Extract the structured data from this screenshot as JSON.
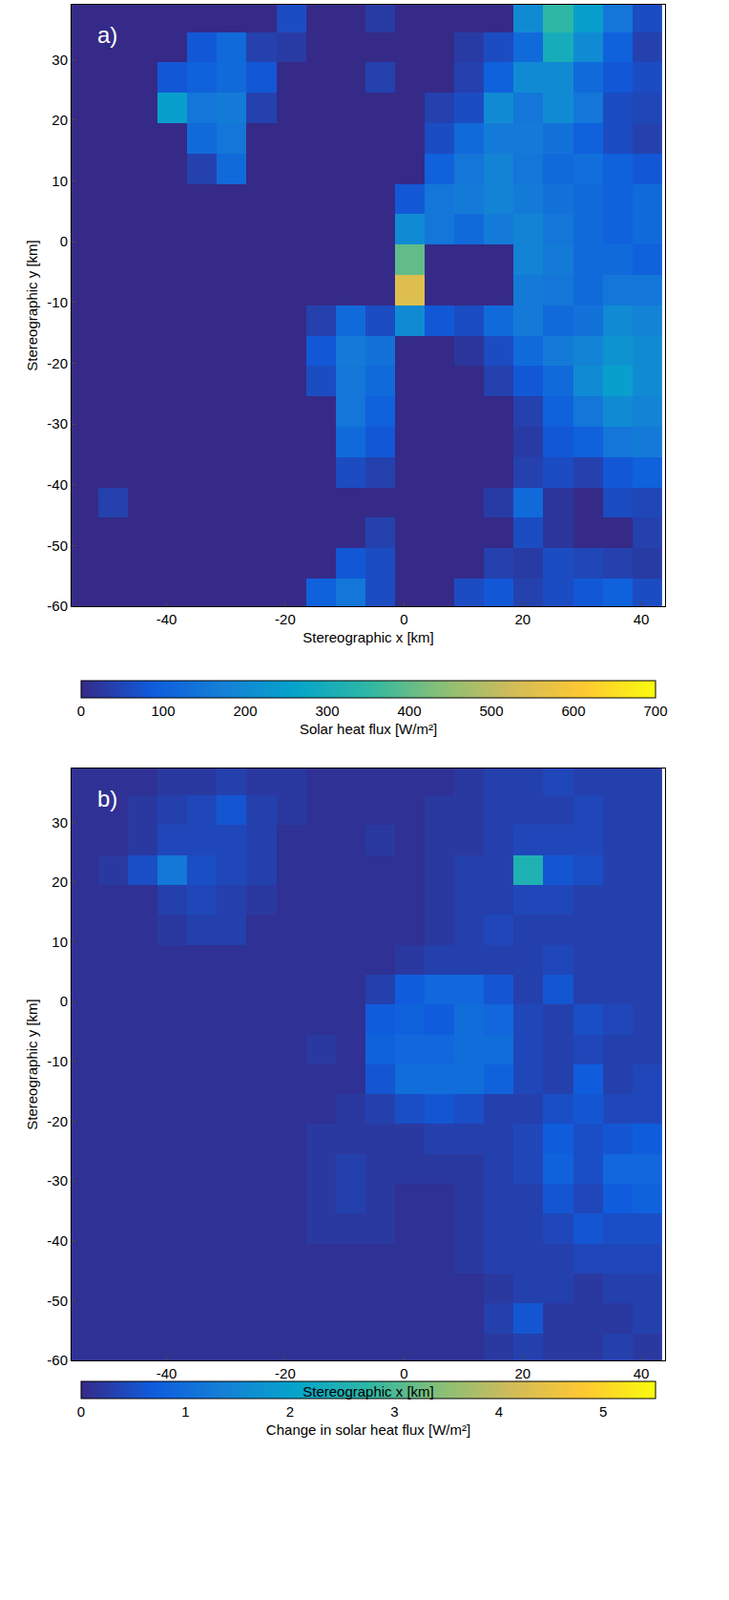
{
  "chart_data": [
    {
      "type": "heatmap",
      "title": "a)",
      "xlabel": "Stereographic x [km]",
      "ylabel": "Stereographic y [km]",
      "xlim": [
        -56,
        44
      ],
      "ylim": [
        -60,
        39
      ],
      "xticks": [
        -40,
        -20,
        0,
        20,
        40
      ],
      "yticks": [
        -60,
        -50,
        -40,
        -30,
        -20,
        -10,
        0,
        10,
        20,
        30
      ],
      "x": [
        -54,
        -49,
        -44,
        -39,
        -34,
        -29,
        -24,
        -19,
        -14,
        -9,
        -4,
        1,
        6,
        11,
        16,
        21,
        26,
        31,
        36,
        41
      ],
      "y": [
        -58,
        -53,
        -48,
        -43,
        -38,
        -33,
        -28,
        -23,
        -18,
        -13,
        -8,
        -3,
        2,
        7,
        12,
        17,
        22,
        27,
        32,
        37
      ],
      "z": [
        [
          0,
          0,
          0,
          0,
          0,
          0,
          0,
          0,
          100,
          150,
          60,
          0,
          0,
          60,
          80,
          40,
          60,
          80,
          100,
          60
        ],
        [
          0,
          0,
          0,
          0,
          0,
          0,
          0,
          0,
          0,
          80,
          60,
          0,
          0,
          0,
          40,
          30,
          60,
          50,
          40,
          30
        ],
        [
          0,
          0,
          0,
          0,
          0,
          0,
          0,
          0,
          0,
          0,
          40,
          0,
          0,
          0,
          0,
          60,
          20,
          0,
          0,
          40
        ],
        [
          0,
          40,
          0,
          0,
          0,
          0,
          0,
          0,
          0,
          0,
          0,
          0,
          0,
          0,
          30,
          120,
          20,
          0,
          60,
          50
        ],
        [
          0,
          0,
          0,
          0,
          0,
          0,
          0,
          0,
          0,
          60,
          40,
          0,
          0,
          0,
          0,
          40,
          60,
          40,
          80,
          100
        ],
        [
          0,
          0,
          0,
          0,
          0,
          0,
          0,
          0,
          0,
          120,
          80,
          0,
          0,
          0,
          0,
          30,
          80,
          100,
          150,
          160
        ],
        [
          0,
          0,
          0,
          0,
          0,
          0,
          0,
          0,
          0,
          150,
          100,
          0,
          0,
          0,
          0,
          40,
          100,
          150,
          200,
          180
        ],
        [
          0,
          0,
          0,
          0,
          0,
          0,
          0,
          0,
          60,
          150,
          120,
          0,
          0,
          0,
          40,
          80,
          120,
          200,
          250,
          200
        ],
        [
          0,
          0,
          0,
          0,
          0,
          0,
          0,
          0,
          80,
          160,
          140,
          0,
          0,
          20,
          60,
          120,
          160,
          180,
          220,
          200
        ],
        [
          0,
          0,
          0,
          0,
          0,
          0,
          0,
          0,
          40,
          120,
          60,
          200,
          80,
          60,
          120,
          160,
          120,
          140,
          200,
          180
        ],
        [
          0,
          0,
          0,
          0,
          0,
          0,
          0,
          0,
          0,
          0,
          0,
          550,
          0,
          0,
          0,
          160,
          150,
          120,
          150,
          150
        ],
        [
          0,
          0,
          0,
          0,
          0,
          0,
          0,
          0,
          0,
          0,
          0,
          400,
          0,
          0,
          0,
          180,
          160,
          120,
          120,
          100
        ],
        [
          0,
          0,
          0,
          0,
          0,
          0,
          0,
          0,
          0,
          0,
          0,
          200,
          150,
          120,
          160,
          180,
          150,
          120,
          100,
          120
        ],
        [
          0,
          0,
          0,
          0,
          0,
          0,
          0,
          0,
          0,
          0,
          0,
          80,
          150,
          160,
          180,
          160,
          140,
          120,
          100,
          120
        ],
        [
          0,
          0,
          0,
          0,
          40,
          120,
          0,
          0,
          0,
          0,
          0,
          0,
          100,
          150,
          180,
          150,
          120,
          130,
          100,
          80
        ],
        [
          0,
          0,
          0,
          0,
          120,
          150,
          0,
          0,
          0,
          0,
          0,
          0,
          60,
          120,
          160,
          160,
          140,
          100,
          60,
          40
        ],
        [
          0,
          0,
          0,
          250,
          150,
          160,
          40,
          0,
          0,
          0,
          0,
          0,
          40,
          60,
          200,
          150,
          200,
          150,
          60,
          50
        ],
        [
          0,
          0,
          0,
          80,
          100,
          120,
          80,
          0,
          0,
          0,
          40,
          0,
          0,
          40,
          100,
          200,
          200,
          120,
          80,
          60
        ],
        [
          0,
          0,
          0,
          0,
          80,
          120,
          40,
          30,
          0,
          0,
          0,
          0,
          0,
          30,
          60,
          120,
          300,
          200,
          100,
          40
        ],
        [
          0,
          0,
          0,
          0,
          0,
          0,
          0,
          60,
          0,
          0,
          30,
          0,
          0,
          0,
          0,
          200,
          350,
          250,
          150,
          60
        ]
      ],
      "colorbar": {
        "label": "Solar heat flux [W/m²]",
        "range": [
          0,
          700
        ],
        "ticks": [
          0,
          100,
          200,
          300,
          400,
          500,
          600,
          700
        ]
      }
    },
    {
      "type": "heatmap",
      "title": "b)",
      "xlabel": "Stereographic x [km]",
      "ylabel": "Stereographic y [km]",
      "xlim": [
        -56,
        44
      ],
      "ylim": [
        -60,
        39
      ],
      "xticks": [
        -40,
        -20,
        0,
        20,
        40
      ],
      "yticks": [
        -60,
        -50,
        -40,
        -30,
        -20,
        -10,
        0,
        10,
        20,
        30
      ],
      "x": [
        -54,
        -49,
        -44,
        -39,
        -34,
        -29,
        -24,
        -19,
        -14,
        -9,
        -4,
        1,
        6,
        11,
        16,
        21,
        26,
        31,
        36,
        41
      ],
      "y": [
        -58,
        -53,
        -48,
        -43,
        -38,
        -33,
        -28,
        -23,
        -18,
        -13,
        -8,
        -3,
        2,
        7,
        12,
        17,
        22,
        27,
        32,
        37
      ],
      "z": [
        [
          0.1,
          0.1,
          0.1,
          0.1,
          0.1,
          0.1,
          0.1,
          0.1,
          0.1,
          0.1,
          0.1,
          0.1,
          0.1,
          0.1,
          0.2,
          0.3,
          0.2,
          0.2,
          0.3,
          0.2
        ],
        [
          0.1,
          0.1,
          0.1,
          0.1,
          0.1,
          0.1,
          0.1,
          0.1,
          0.1,
          0.1,
          0.1,
          0.1,
          0.1,
          0.1,
          0.3,
          0.6,
          0.2,
          0.2,
          0.2,
          0.3
        ],
        [
          0.1,
          0.1,
          0.1,
          0.1,
          0.1,
          0.1,
          0.1,
          0.1,
          0.1,
          0.1,
          0.1,
          0.1,
          0.1,
          0.1,
          0.2,
          0.3,
          0.3,
          0.2,
          0.3,
          0.3
        ],
        [
          0.1,
          0.1,
          0.1,
          0.1,
          0.1,
          0.1,
          0.1,
          0.1,
          0.1,
          0.1,
          0.1,
          0.1,
          0.1,
          0.2,
          0.3,
          0.3,
          0.3,
          0.4,
          0.4,
          0.4
        ],
        [
          0.1,
          0.1,
          0.1,
          0.1,
          0.1,
          0.1,
          0.1,
          0.1,
          0.2,
          0.2,
          0.2,
          0.1,
          0.1,
          0.2,
          0.3,
          0.3,
          0.4,
          0.6,
          0.5,
          0.5
        ],
        [
          0.1,
          0.1,
          0.1,
          0.1,
          0.1,
          0.1,
          0.1,
          0.1,
          0.2,
          0.3,
          0.2,
          0.1,
          0.1,
          0.2,
          0.3,
          0.3,
          0.6,
          0.4,
          0.7,
          0.8
        ],
        [
          0.1,
          0.1,
          0.1,
          0.1,
          0.1,
          0.1,
          0.1,
          0.1,
          0.2,
          0.3,
          0.2,
          0.2,
          0.2,
          0.2,
          0.3,
          0.4,
          0.8,
          0.5,
          0.9,
          0.9
        ],
        [
          0.1,
          0.1,
          0.1,
          0.1,
          0.1,
          0.1,
          0.1,
          0.1,
          0.2,
          0.2,
          0.2,
          0.2,
          0.3,
          0.3,
          0.3,
          0.4,
          0.7,
          0.5,
          0.6,
          0.7
        ],
        [
          0.1,
          0.1,
          0.1,
          0.1,
          0.1,
          0.1,
          0.1,
          0.1,
          0.1,
          0.2,
          0.3,
          0.5,
          0.6,
          0.5,
          0.3,
          0.3,
          0.5,
          0.6,
          0.4,
          0.4
        ],
        [
          0.1,
          0.1,
          0.1,
          0.1,
          0.1,
          0.1,
          0.1,
          0.1,
          0.1,
          0.1,
          0.6,
          1.0,
          1.0,
          1.0,
          0.8,
          0.4,
          0.3,
          0.7,
          0.3,
          0.4
        ],
        [
          0.1,
          0.1,
          0.1,
          0.1,
          0.1,
          0.1,
          0.1,
          0.1,
          0.2,
          0.1,
          0.8,
          0.9,
          0.9,
          1.0,
          1.0,
          0.4,
          0.3,
          0.4,
          0.3,
          0.3
        ],
        [
          0.1,
          0.1,
          0.1,
          0.1,
          0.1,
          0.1,
          0.1,
          0.1,
          0.1,
          0.1,
          0.7,
          0.8,
          0.7,
          1.0,
          0.9,
          0.4,
          0.3,
          0.5,
          0.4,
          0.3
        ],
        [
          0.1,
          0.1,
          0.1,
          0.1,
          0.1,
          0.1,
          0.1,
          0.1,
          0.1,
          0.1,
          0.3,
          0.7,
          0.9,
          0.9,
          0.6,
          0.3,
          0.6,
          0.3,
          0.3,
          0.3
        ],
        [
          0.1,
          0.1,
          0.1,
          0.1,
          0.1,
          0.1,
          0.1,
          0.1,
          0.1,
          0.1,
          0.1,
          0.2,
          0.3,
          0.3,
          0.3,
          0.3,
          0.4,
          0.3,
          0.3,
          0.3
        ],
        [
          0.1,
          0.1,
          0.1,
          0.2,
          0.3,
          0.3,
          0.1,
          0.1,
          0.1,
          0.1,
          0.1,
          0.1,
          0.2,
          0.3,
          0.4,
          0.3,
          0.3,
          0.3,
          0.3,
          0.3
        ],
        [
          0.1,
          0.1,
          0.1,
          0.3,
          0.4,
          0.3,
          0.2,
          0.1,
          0.1,
          0.1,
          0.1,
          0.1,
          0.2,
          0.3,
          0.3,
          0.4,
          0.4,
          0.3,
          0.3,
          0.3
        ],
        [
          0.1,
          0.2,
          0.5,
          1.2,
          0.5,
          0.4,
          0.3,
          0.1,
          0.1,
          0.1,
          0.1,
          0.1,
          0.2,
          0.3,
          0.3,
          2.5,
          0.6,
          0.5,
          0.3,
          0.3
        ],
        [
          0.1,
          0.1,
          0.2,
          0.4,
          0.4,
          0.4,
          0.3,
          0.1,
          0.1,
          0.1,
          0.2,
          0.1,
          0.2,
          0.2,
          0.3,
          0.4,
          0.4,
          0.4,
          0.3,
          0.3
        ],
        [
          0.1,
          0.1,
          0.2,
          0.3,
          0.4,
          0.6,
          0.3,
          0.2,
          0.1,
          0.1,
          0.1,
          0.1,
          0.2,
          0.2,
          0.3,
          0.3,
          0.3,
          0.4,
          0.3,
          0.3
        ],
        [
          0.1,
          0.1,
          0.1,
          0.2,
          0.2,
          0.3,
          0.2,
          0.2,
          0.1,
          0.1,
          0.1,
          0.1,
          0.1,
          0.2,
          0.3,
          0.3,
          0.4,
          0.3,
          0.3,
          0.3
        ]
      ],
      "colorbar": {
        "label": "Change in solar heat flux [W/m²]",
        "range": [
          0,
          5.5
        ],
        "ticks": [
          0,
          1,
          2,
          3,
          4,
          5
        ]
      }
    }
  ]
}
